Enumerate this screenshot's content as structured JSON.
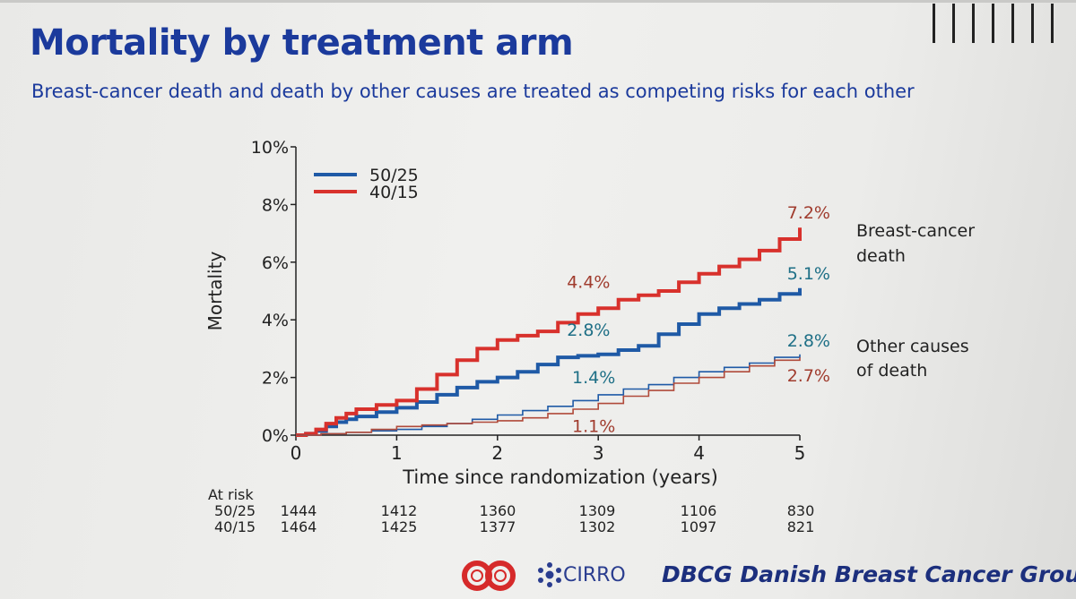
{
  "slide": {
    "title": "Mortality by treatment arm",
    "subtitle": "Breast-cancer death and death by other causes are treated as competing risks for each other"
  },
  "chart_data": {
    "type": "line",
    "title": "Mortality by treatment arm",
    "xlabel": "Time since randomization (years)",
    "ylabel": "Mortality",
    "xlim": [
      0,
      5
    ],
    "ylim": [
      0,
      10
    ],
    "x_ticks": [
      "0",
      "1",
      "2",
      "3",
      "4",
      "5"
    ],
    "y_ticks": [
      "0%",
      "2%",
      "4%",
      "6%",
      "8%",
      "10%"
    ],
    "legend": [
      {
        "label": "50/25",
        "color": "#1f5aa6"
      },
      {
        "label": "40/15",
        "color": "#d8312c"
      }
    ],
    "legend_position": "top-left",
    "series": [
      {
        "name": "50/25 breast-cancer death",
        "color": "#1f5aa6",
        "style": "thick",
        "x": [
          0,
          0.1,
          0.2,
          0.3,
          0.4,
          0.5,
          0.6,
          0.8,
          1.0,
          1.2,
          1.4,
          1.6,
          1.8,
          2.0,
          2.2,
          2.4,
          2.6,
          2.8,
          3.0,
          3.2,
          3.4,
          3.6,
          3.8,
          4.0,
          4.2,
          4.4,
          4.6,
          4.8,
          5.0
        ],
        "y": [
          0,
          0.05,
          0.15,
          0.3,
          0.45,
          0.55,
          0.65,
          0.8,
          0.95,
          1.15,
          1.4,
          1.65,
          1.85,
          2.0,
          2.2,
          2.45,
          2.7,
          2.75,
          2.8,
          2.95,
          3.1,
          3.5,
          3.85,
          4.2,
          4.4,
          4.55,
          4.7,
          4.9,
          5.1
        ]
      },
      {
        "name": "40/15 breast-cancer death",
        "color": "#d8312c",
        "style": "thick",
        "x": [
          0,
          0.1,
          0.2,
          0.3,
          0.4,
          0.5,
          0.6,
          0.8,
          1.0,
          1.2,
          1.4,
          1.6,
          1.8,
          2.0,
          2.2,
          2.4,
          2.6,
          2.8,
          3.0,
          3.2,
          3.4,
          3.6,
          3.8,
          4.0,
          4.2,
          4.4,
          4.6,
          4.8,
          5.0
        ],
        "y": [
          0,
          0.05,
          0.2,
          0.4,
          0.6,
          0.75,
          0.9,
          1.05,
          1.2,
          1.6,
          2.1,
          2.6,
          3.0,
          3.3,
          3.45,
          3.6,
          3.9,
          4.2,
          4.4,
          4.7,
          4.85,
          5.0,
          5.3,
          5.6,
          5.85,
          6.1,
          6.4,
          6.8,
          7.2
        ]
      },
      {
        "name": "50/25 other causes of death",
        "color": "#1f5aa6",
        "style": "thin",
        "x": [
          0,
          0.25,
          0.5,
          0.75,
          1.0,
          1.25,
          1.5,
          1.75,
          2.0,
          2.25,
          2.5,
          2.75,
          3.0,
          3.25,
          3.5,
          3.75,
          4.0,
          4.25,
          4.5,
          4.75,
          5.0
        ],
        "y": [
          0,
          0.05,
          0.1,
          0.15,
          0.2,
          0.3,
          0.4,
          0.55,
          0.7,
          0.85,
          1.0,
          1.2,
          1.4,
          1.6,
          1.75,
          2.0,
          2.2,
          2.35,
          2.5,
          2.7,
          2.8
        ]
      },
      {
        "name": "40/15 other causes of death",
        "color": "#b04a3a",
        "style": "thin",
        "x": [
          0,
          0.25,
          0.5,
          0.75,
          1.0,
          1.25,
          1.5,
          1.75,
          2.0,
          2.25,
          2.5,
          2.75,
          3.0,
          3.25,
          3.5,
          3.75,
          4.0,
          4.25,
          4.5,
          4.75,
          5.0
        ],
        "y": [
          0,
          0.05,
          0.1,
          0.2,
          0.3,
          0.35,
          0.4,
          0.45,
          0.5,
          0.6,
          0.75,
          0.9,
          1.1,
          1.35,
          1.55,
          1.8,
          2.0,
          2.2,
          2.4,
          2.6,
          2.7
        ]
      }
    ],
    "annotations": [
      {
        "text": "7.2%",
        "x": 5.0,
        "y": 7.2,
        "color": "#a03c2e"
      },
      {
        "text": "5.1%",
        "x": 5.0,
        "y": 5.1,
        "color": "#1e6f86"
      },
      {
        "text": "4.4%",
        "x": 3.0,
        "y": 4.4,
        "color": "#a03c2e"
      },
      {
        "text": "2.8%",
        "x": 3.0,
        "y": 2.8,
        "color": "#1e6f86"
      },
      {
        "text": "1.4%",
        "x": 3.0,
        "y": 1.4,
        "color": "#1e6f86"
      },
      {
        "text": "1.1%",
        "x": 3.0,
        "y": 1.1,
        "color": "#a03c2e"
      },
      {
        "text": "2.8%",
        "x": 5.0,
        "y": 2.8,
        "color": "#1e6f86"
      },
      {
        "text": "2.7%",
        "x": 5.0,
        "y": 2.7,
        "color": "#a03c2e"
      }
    ],
    "right_labels": {
      "breast_cancer": [
        "Breast-cancer",
        "death"
      ],
      "other_causes": [
        "Other causes",
        "of death"
      ]
    }
  },
  "at_risk": {
    "header": "At risk",
    "rows": [
      {
        "label": "50/25",
        "values": [
          "1444",
          "1412",
          "1360",
          "1309",
          "1106",
          "830"
        ]
      },
      {
        "label": "40/15",
        "values": [
          "1464",
          "1425",
          "1377",
          "1302",
          "1097",
          "821"
        ]
      }
    ]
  },
  "logos": {
    "cirro": "CIRRO",
    "dbcg": "DBCG Danish Breast Cancer Group"
  }
}
